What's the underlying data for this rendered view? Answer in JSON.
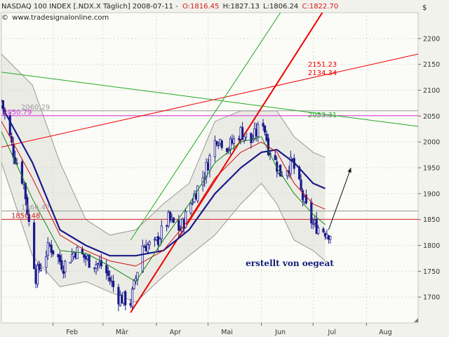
{
  "header": {
    "symbol_line": "NASDAQ 100 INDEX [.NDX.X  Täglich] 2008-07-11 -",
    "open": "O:1816.45",
    "high": "H:1827.13",
    "low": "L:1806.24",
    "close": "C:1822.70",
    "website": "www.tradesignalonline.com",
    "currency": "$"
  },
  "colors": {
    "background": "#f2f2ec",
    "plot_background": "#fbfbf7",
    "band_fill": "#d8d8d0",
    "up_candle": "#ffffff",
    "down_candle": "#1a1a8a",
    "ma_long": "#1a1a8a",
    "ma_mid": "#cc1111",
    "ma_short": "#118811",
    "trend_red": "#ee0000",
    "channel_green": "#22aa22",
    "level_magenta": "#dd33dd",
    "level_red": "#cc2222",
    "level_gray": "#999999",
    "credit_text": "#12207a"
  },
  "chart_data": {
    "type": "candlestick",
    "title": "NASDAQ 100 INDEX [.NDX.X Täglich]",
    "date_range": [
      "2008-01-02",
      "2008-08-31"
    ],
    "ylim": [
      1650,
      2250
    ],
    "y_ticks": [
      1700,
      1750,
      1800,
      1850,
      1900,
      1950,
      2000,
      2050,
      2100,
      2150,
      2200
    ],
    "x_ticks": [
      {
        "date": "2008-02-01",
        "label": "Feb"
      },
      {
        "date": "2008-03-01",
        "label": "Mär"
      },
      {
        "date": "2008-04-01",
        "label": "Apr"
      },
      {
        "date": "2008-05-01",
        "label": "Mai"
      },
      {
        "date": "2008-06-01",
        "label": "Jun"
      },
      {
        "date": "2008-07-01",
        "label": "Jul"
      },
      {
        "date": "2008-08-01",
        "label": "Aug"
      }
    ],
    "price_path": [
      {
        "date": "2008-01-02",
        "close": 2080
      },
      {
        "date": "2008-01-09",
        "close": 1980
      },
      {
        "date": "2008-01-15",
        "close": 1920
      },
      {
        "date": "2008-01-22",
        "close": 1740
      },
      {
        "date": "2008-01-30",
        "close": 1800
      },
      {
        "date": "2008-02-07",
        "close": 1760
      },
      {
        "date": "2008-02-14",
        "close": 1790
      },
      {
        "date": "2008-02-22",
        "close": 1770
      },
      {
        "date": "2008-03-01",
        "close": 1760
      },
      {
        "date": "2008-03-10",
        "close": 1700
      },
      {
        "date": "2008-03-17",
        "close": 1690
      },
      {
        "date": "2008-03-24",
        "close": 1800
      },
      {
        "date": "2008-03-31",
        "close": 1800
      },
      {
        "date": "2008-04-08",
        "close": 1850
      },
      {
        "date": "2008-04-15",
        "close": 1830
      },
      {
        "date": "2008-04-22",
        "close": 1890
      },
      {
        "date": "2008-04-29",
        "close": 1940
      },
      {
        "date": "2008-05-06",
        "close": 2010
      },
      {
        "date": "2008-05-13",
        "close": 1990
      },
      {
        "date": "2008-05-20",
        "close": 2020
      },
      {
        "date": "2008-05-26",
        "close": 2000
      },
      {
        "date": "2008-06-02",
        "close": 2040
      },
      {
        "date": "2008-06-05",
        "close": 1990
      },
      {
        "date": "2008-06-12",
        "close": 1940
      },
      {
        "date": "2008-06-19",
        "close": 1960
      },
      {
        "date": "2008-06-26",
        "close": 1880
      },
      {
        "date": "2008-07-01",
        "close": 1840
      },
      {
        "date": "2008-07-07",
        "close": 1830
      },
      {
        "date": "2008-07-11",
        "close": 1822.7
      }
    ],
    "moving_averages": [
      {
        "values": [
          {
            "date": "2008-01-02",
            "v": 2070
          },
          {
            "date": "2008-01-20",
            "v": 1960
          },
          {
            "date": "2008-02-05",
            "v": 1830
          },
          {
            "date": "2008-02-20",
            "v": 1800
          },
          {
            "date": "2008-03-05",
            "v": 1780
          },
          {
            "date": "2008-03-20",
            "v": 1780
          },
          {
            "date": "2008-04-05",
            "v": 1790
          },
          {
            "date": "2008-04-20",
            "v": 1830
          },
          {
            "date": "2008-05-05",
            "v": 1900
          },
          {
            "date": "2008-05-20",
            "v": 1950
          },
          {
            "date": "2008-06-01",
            "v": 1980
          },
          {
            "date": "2008-06-10",
            "v": 1985
          },
          {
            "date": "2008-06-20",
            "v": 1960
          },
          {
            "date": "2008-07-01",
            "v": 1920
          },
          {
            "date": "2008-07-08",
            "v": 1910
          }
        ]
      },
      {
        "values": [
          {
            "date": "2008-01-02",
            "v": 2040
          },
          {
            "date": "2008-01-20",
            "v": 1930
          },
          {
            "date": "2008-02-05",
            "v": 1820
          },
          {
            "date": "2008-02-20",
            "v": 1790
          },
          {
            "date": "2008-03-05",
            "v": 1770
          },
          {
            "date": "2008-03-20",
            "v": 1760
          },
          {
            "date": "2008-04-05",
            "v": 1790
          },
          {
            "date": "2008-04-20",
            "v": 1850
          },
          {
            "date": "2008-05-05",
            "v": 1930
          },
          {
            "date": "2008-05-20",
            "v": 1980
          },
          {
            "date": "2008-06-01",
            "v": 2000
          },
          {
            "date": "2008-06-10",
            "v": 1980
          },
          {
            "date": "2008-06-20",
            "v": 1920
          },
          {
            "date": "2008-07-01",
            "v": 1880
          },
          {
            "date": "2008-07-08",
            "v": 1870
          }
        ]
      },
      {
        "values": [
          {
            "date": "2008-01-02",
            "v": 2020
          },
          {
            "date": "2008-01-20",
            "v": 1890
          },
          {
            "date": "2008-02-05",
            "v": 1790
          },
          {
            "date": "2008-02-20",
            "v": 1785
          },
          {
            "date": "2008-03-05",
            "v": 1760
          },
          {
            "date": "2008-03-20",
            "v": 1730
          },
          {
            "date": "2008-04-05",
            "v": 1810
          },
          {
            "date": "2008-04-20",
            "v": 1880
          },
          {
            "date": "2008-05-05",
            "v": 1960
          },
          {
            "date": "2008-05-20",
            "v": 2000
          },
          {
            "date": "2008-06-01",
            "v": 2010
          },
          {
            "date": "2008-06-10",
            "v": 1950
          },
          {
            "date": "2008-06-20",
            "v": 1900
          },
          {
            "date": "2008-07-01",
            "v": 1860
          },
          {
            "date": "2008-07-08",
            "v": 1840
          }
        ]
      }
    ],
    "bollinger_band": {
      "upper": [
        {
          "date": "2008-01-02",
          "v": 2170
        },
        {
          "date": "2008-01-20",
          "v": 2110
        },
        {
          "date": "2008-02-05",
          "v": 1960
        },
        {
          "date": "2008-02-20",
          "v": 1850
        },
        {
          "date": "2008-03-05",
          "v": 1820
        },
        {
          "date": "2008-03-20",
          "v": 1830
        },
        {
          "date": "2008-04-05",
          "v": 1880
        },
        {
          "date": "2008-04-20",
          "v": 1920
        },
        {
          "date": "2008-05-05",
          "v": 2040
        },
        {
          "date": "2008-05-20",
          "v": 2060
        },
        {
          "date": "2008-06-01",
          "v": 2060
        },
        {
          "date": "2008-06-10",
          "v": 2060
        },
        {
          "date": "2008-06-20",
          "v": 2010
        },
        {
          "date": "2008-07-01",
          "v": 1980
        },
        {
          "date": "2008-07-08",
          "v": 1970
        }
      ],
      "lower": [
        {
          "date": "2008-01-02",
          "v": 1960
        },
        {
          "date": "2008-01-20",
          "v": 1780
        },
        {
          "date": "2008-02-05",
          "v": 1720
        },
        {
          "date": "2008-02-20",
          "v": 1730
        },
        {
          "date": "2008-03-05",
          "v": 1710
        },
        {
          "date": "2008-03-20",
          "v": 1690
        },
        {
          "date": "2008-04-05",
          "v": 1740
        },
        {
          "date": "2008-04-20",
          "v": 1780
        },
        {
          "date": "2008-05-05",
          "v": 1820
        },
        {
          "date": "2008-05-20",
          "v": 1880
        },
        {
          "date": "2008-06-01",
          "v": 1920
        },
        {
          "date": "2008-06-10",
          "v": 1880
        },
        {
          "date": "2008-06-20",
          "v": 1810
        },
        {
          "date": "2008-07-01",
          "v": 1790
        },
        {
          "date": "2008-07-08",
          "v": 1770
        }
      ]
    },
    "trend_lines": [
      {
        "kind": "support",
        "from": {
          "date": "2008-03-17",
          "v": 1670
        },
        "to": {
          "date": "2008-08-08",
          "v": 2420
        }
      },
      {
        "kind": "resistance-green",
        "from": {
          "date": "2008-01-02",
          "v": 2135
        },
        "to": {
          "date": "2008-08-31",
          "v": 2030
        }
      },
      {
        "kind": "upper-red",
        "from": {
          "date": "2008-01-02",
          "v": 1990
        },
        "to": {
          "date": "2008-08-31",
          "v": 2170
        }
      },
      {
        "kind": "channel-green",
        "from": {
          "date": "2008-03-17",
          "v": 1810
        },
        "to": {
          "date": "2008-06-14",
          "v": 2260
        }
      }
    ],
    "horizontal_levels": [
      {
        "value": 2050.79,
        "label": "2050.79",
        "kind": "magenta"
      },
      {
        "value": 2060.29,
        "label": "2060.29",
        "kind": "gray"
      },
      {
        "value": 1866.47,
        "label": "1866.47",
        "kind": "gray"
      },
      {
        "value": 1850.48,
        "label": "1850.48",
        "kind": "red"
      }
    ],
    "annotations": [
      {
        "text": "2151.23",
        "date": "2008-06-28",
        "v": 2151.23,
        "kind": "red"
      },
      {
        "text": "2134.34",
        "date": "2008-06-28",
        "v": 2134.34,
        "kind": "red"
      },
      {
        "text": "2053.31",
        "date": "2008-06-28",
        "v": 2053.31,
        "kind": "green"
      },
      {
        "text": "erstellt von oegeat",
        "date": "2008-05-31",
        "v": 1760,
        "kind": "credit"
      }
    ],
    "forecast_arrow": {
      "from": {
        "date": "2008-07-10",
        "v": 1830
      },
      "to": {
        "date": "2008-07-23",
        "v": 1950
      }
    }
  }
}
